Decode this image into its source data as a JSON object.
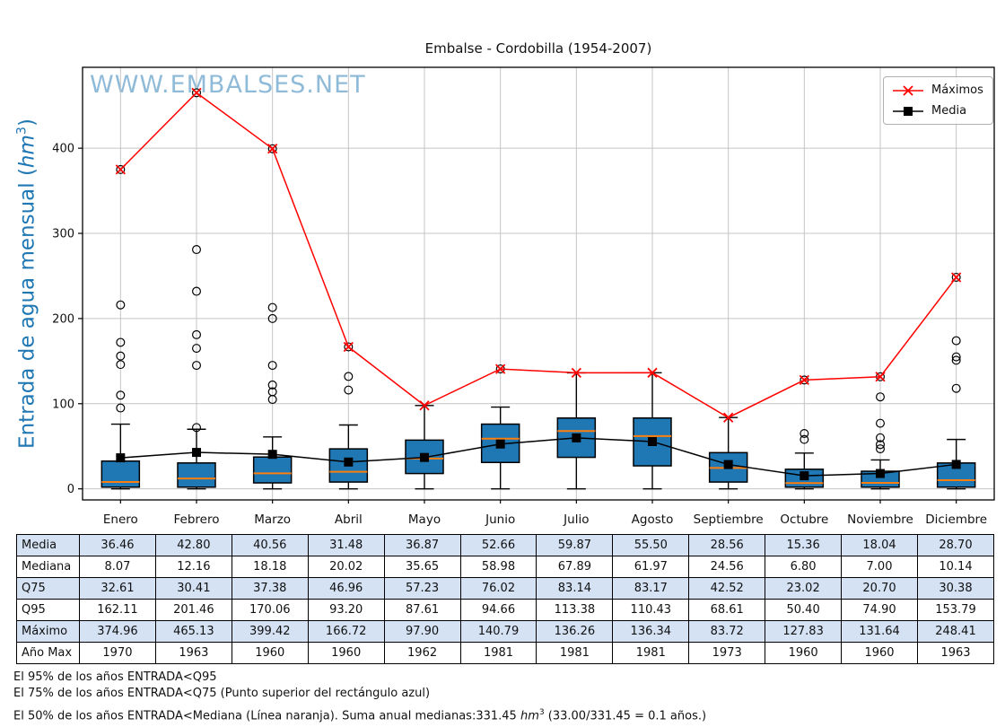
{
  "title": "Embalse - Cordobilla (1954-2007)",
  "watermark": "WWW.EMBALSES.NET",
  "ylabel": {
    "pre": "Entrada de agua mensual (",
    "unit": "hm",
    "sup": "3",
    "post": ")"
  },
  "legend": [
    {
      "label": "Máximos",
      "marker": "x"
    },
    {
      "label": "Media",
      "marker": "square"
    }
  ],
  "colors": {
    "box_fill": "#1f77b4",
    "box_edge": "#000000",
    "median_line": "#ff7f0e",
    "maximos": "#ff0000",
    "media": "#000000",
    "grid": "#c4c4c4",
    "table_alt_row": "#d4e2f4",
    "ylabel_blue": "#1f77b4",
    "watermark_blue": "#9cbfdc"
  },
  "chart_data": {
    "type": "boxplot+lines",
    "title": "Embalse - Cordobilla (1954-2007)",
    "categories": [
      "Enero",
      "Febrero",
      "Marzo",
      "Abril",
      "Mayo",
      "Junio",
      "Julio",
      "Agosto",
      "Septiembre",
      "Octubre",
      "Noviembre",
      "Diciembre"
    ],
    "ylim": [
      -13,
      495
    ],
    "yticks": [
      0,
      100,
      200,
      300,
      400
    ],
    "grid": true,
    "legend_position": "upper right",
    "boxes": [
      {
        "q1": 2,
        "median": 8.07,
        "q3": 32.61,
        "whisker_low": 0,
        "whisker_high": 76,
        "outliers": [
          374.96,
          216,
          172,
          156,
          146,
          110,
          95
        ]
      },
      {
        "q1": 2,
        "median": 12.16,
        "q3": 30.41,
        "whisker_low": 0,
        "whisker_high": 70,
        "outliers": [
          465.13,
          281,
          232,
          181,
          165,
          145,
          72
        ]
      },
      {
        "q1": 7,
        "median": 18.18,
        "q3": 37.38,
        "whisker_low": 0,
        "whisker_high": 61,
        "outliers": [
          399.42,
          213,
          200,
          145,
          122,
          114,
          105
        ]
      },
      {
        "q1": 8,
        "median": 20.02,
        "q3": 46.96,
        "whisker_low": 0,
        "whisker_high": 75,
        "outliers": [
          166.72,
          132,
          116
        ]
      },
      {
        "q1": 18,
        "median": 35.65,
        "q3": 57.23,
        "whisker_low": 0,
        "whisker_high": 97.9,
        "outliers": []
      },
      {
        "q1": 31,
        "median": 58.98,
        "q3": 76.02,
        "whisker_low": 0,
        "whisker_high": 96,
        "outliers": [
          140.79
        ]
      },
      {
        "q1": 37,
        "median": 67.89,
        "q3": 83.14,
        "whisker_low": 0,
        "whisker_high": 136.26,
        "outliers": []
      },
      {
        "q1": 27,
        "median": 61.97,
        "q3": 83.17,
        "whisker_low": 0,
        "whisker_high": 136.34,
        "outliers": []
      },
      {
        "q1": 8,
        "median": 24.56,
        "q3": 42.52,
        "whisker_low": 0,
        "whisker_high": 83.72,
        "outliers": []
      },
      {
        "q1": 2,
        "median": 6.8,
        "q3": 23.02,
        "whisker_low": 0,
        "whisker_high": 42,
        "outliers": [
          127.83,
          65,
          58
        ]
      },
      {
        "q1": 2,
        "median": 7.0,
        "q3": 20.7,
        "whisker_low": 0,
        "whisker_high": 34,
        "outliers": [
          131.64,
          108,
          77,
          60,
          52,
          47
        ]
      },
      {
        "q1": 2,
        "median": 10.14,
        "q3": 30.38,
        "whisker_low": 0,
        "whisker_high": 58,
        "outliers": [
          248.41,
          174,
          155,
          151,
          118
        ]
      }
    ],
    "series": [
      {
        "name": "Máximos",
        "values": [
          374.96,
          465.13,
          399.42,
          166.72,
          97.9,
          140.79,
          136.26,
          136.34,
          83.72,
          127.83,
          131.64,
          248.41
        ]
      },
      {
        "name": "Media",
        "values": [
          36.46,
          42.8,
          40.56,
          31.48,
          36.87,
          52.66,
          59.87,
          55.5,
          28.56,
          15.36,
          18.04,
          28.7
        ]
      }
    ]
  },
  "table": {
    "rows": [
      {
        "key": "media",
        "label": "Media",
        "values": [
          "36.46",
          "42.80",
          "40.56",
          "31.48",
          "36.87",
          "52.66",
          "59.87",
          "55.50",
          "28.56",
          "15.36",
          "18.04",
          "28.70"
        ]
      },
      {
        "key": "mediana",
        "label": "Mediana",
        "values": [
          "8.07",
          "12.16",
          "18.18",
          "20.02",
          "35.65",
          "58.98",
          "67.89",
          "61.97",
          "24.56",
          "6.80",
          "7.00",
          "10.14"
        ]
      },
      {
        "key": "q75",
        "label": "Q75",
        "values": [
          "32.61",
          "30.41",
          "37.38",
          "46.96",
          "57.23",
          "76.02",
          "83.14",
          "83.17",
          "42.52",
          "23.02",
          "20.70",
          "30.38"
        ]
      },
      {
        "key": "q95",
        "label": "Q95",
        "values": [
          "162.11",
          "201.46",
          "170.06",
          "93.20",
          "87.61",
          "94.66",
          "113.38",
          "110.43",
          "68.61",
          "50.40",
          "74.90",
          "153.79"
        ]
      },
      {
        "key": "maximo",
        "label": "Máximo",
        "values": [
          "374.96",
          "465.13",
          "399.42",
          "166.72",
          "97.90",
          "140.79",
          "136.26",
          "136.34",
          "83.72",
          "127.83",
          "131.64",
          "248.41"
        ]
      },
      {
        "key": "ano-max",
        "label": "Año Max",
        "values": [
          "1970",
          "1963",
          "1960",
          "1960",
          "1962",
          "1981",
          "1981",
          "1981",
          "1973",
          "1960",
          "1960",
          "1963"
        ]
      }
    ]
  },
  "footnotes": {
    "line1": "El 95% de los años ENTRADA<Q95",
    "line2": "El 75% de los años ENTRADA<Q75 (Punto superior del rectángulo azul)",
    "line3_pre": " El 50% de los años ENTRADA<Mediana (Línea naranja). Suma anual medianas:331.45 ",
    "line3_unit": "hm",
    "line3_sup": "3",
    "line3_post": " (33.00/331.45 = 0.1 años.)"
  }
}
